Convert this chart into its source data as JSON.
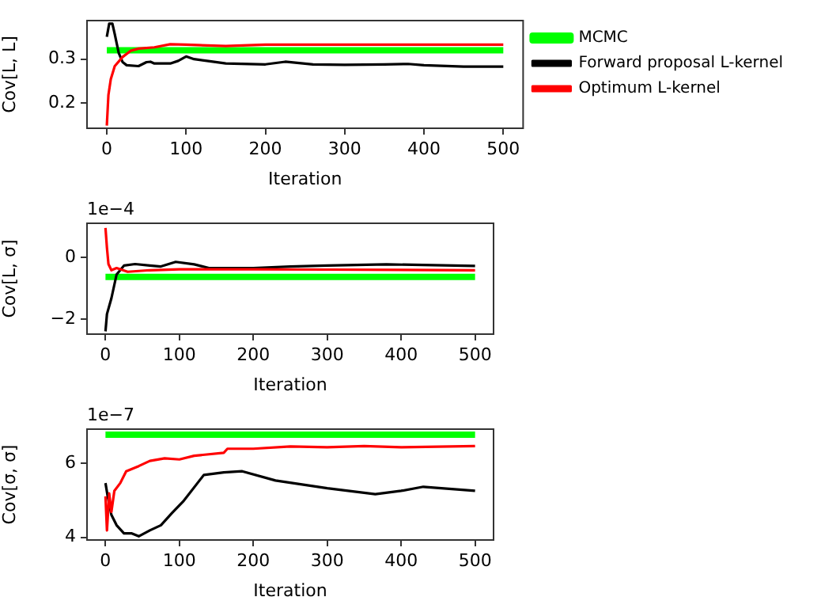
{
  "chart_data": [
    {
      "type": "line",
      "xlabel": "Iteration",
      "ylabel": "Cov[L, L]",
      "xlim": [
        -25,
        525
      ],
      "xticks": [
        0,
        100,
        200,
        300,
        400,
        500
      ],
      "ylim": [
        0.142,
        0.388
      ],
      "yticks": [
        0.2,
        0.3
      ],
      "grid": false,
      "legend": "top right",
      "series": [
        {
          "name": "MCMC",
          "color": "#00ff00",
          "x": [
            0,
            500
          ],
          "values": [
            0.32,
            0.32
          ]
        },
        {
          "name": "Forward proposal L-kernel",
          "color": "#000000",
          "x": [
            0,
            3,
            7,
            10,
            15,
            20,
            25,
            40,
            50,
            55,
            60,
            80,
            90,
            100,
            110,
            130,
            150,
            200,
            225,
            260,
            300,
            350,
            380,
            400,
            450,
            500
          ],
          "values": [
            0.351,
            0.381,
            0.381,
            0.357,
            0.314,
            0.293,
            0.286,
            0.284,
            0.293,
            0.294,
            0.29,
            0.29,
            0.296,
            0.306,
            0.3,
            0.295,
            0.29,
            0.288,
            0.294,
            0.288,
            0.287,
            0.288,
            0.289,
            0.286,
            0.283,
            0.283
          ]
        },
        {
          "name": "Optimum L-kernel",
          "color": "#ff0000",
          "x": [
            0,
            2,
            5,
            10,
            20,
            30,
            40,
            60,
            80,
            100,
            150,
            200,
            300,
            400,
            500
          ],
          "values": [
            0.148,
            0.218,
            0.254,
            0.284,
            0.305,
            0.319,
            0.324,
            0.327,
            0.334,
            0.333,
            0.33,
            0.333,
            0.333,
            0.333,
            0.333
          ]
        }
      ]
    },
    {
      "type": "line",
      "xlabel": "Iteration",
      "ylabel": "Cov[L, σ]",
      "xlim": [
        -25,
        525
      ],
      "xticks": [
        0,
        100,
        200,
        300,
        400,
        500
      ],
      "ylim": [
        -2.48,
        1.11
      ],
      "yticks": [
        -2,
        0
      ],
      "grid": false,
      "annotations": [
        "1e−4"
      ],
      "series": [
        {
          "color": "#00ff00",
          "x": [
            0,
            500
          ],
          "values": [
            -0.63,
            -0.63
          ]
        },
        {
          "color": "#000000",
          "x": [
            0,
            2,
            8,
            15,
            25,
            40,
            60,
            75,
            95,
            120,
            140,
            200,
            250,
            300,
            380,
            500
          ],
          "values": [
            -2.39,
            -1.83,
            -1.32,
            -0.55,
            -0.26,
            -0.21,
            -0.26,
            -0.29,
            -0.14,
            -0.22,
            -0.34,
            -0.34,
            -0.29,
            -0.26,
            -0.22,
            -0.27
          ]
        },
        {
          "color": "#ff0000",
          "x": [
            0,
            2,
            4,
            8,
            15,
            30,
            60,
            100,
            200,
            300,
            500
          ],
          "values": [
            0.96,
            0.31,
            -0.21,
            -0.41,
            -0.34,
            -0.46,
            -0.41,
            -0.38,
            -0.38,
            -0.39,
            -0.41
          ]
        }
      ]
    },
    {
      "type": "line",
      "xlabel": "Iteration",
      "ylabel": "Cov[σ, σ]",
      "xlim": [
        -25,
        525
      ],
      "xticks": [
        0,
        100,
        200,
        300,
        400,
        500
      ],
      "ylim": [
        3.93,
        6.93
      ],
      "yticks": [
        4,
        6
      ],
      "grid": false,
      "annotations": [
        "1e−7"
      ],
      "series": [
        {
          "color": "#00ff00",
          "x": [
            0,
            500
          ],
          "values": [
            6.78,
            6.78
          ]
        },
        {
          "color": "#000000",
          "x": [
            0,
            3,
            8,
            15,
            25,
            35,
            45,
            60,
            75,
            90,
            105,
            133,
            160,
            185,
            230,
            300,
            365,
            400,
            430,
            500
          ],
          "values": [
            5.47,
            5.11,
            4.61,
            4.33,
            4.11,
            4.11,
            4.03,
            4.19,
            4.33,
            4.66,
            4.97,
            5.69,
            5.76,
            5.79,
            5.54,
            5.33,
            5.17,
            5.26,
            5.37,
            5.26
          ]
        },
        {
          "color": "#ff0000",
          "x": [
            0,
            2,
            5,
            8,
            12,
            20,
            28,
            45,
            60,
            80,
            100,
            120,
            160,
            165,
            200,
            250,
            300,
            350,
            400,
            500
          ],
          "values": [
            5.11,
            4.19,
            5.19,
            4.69,
            5.26,
            5.47,
            5.79,
            5.93,
            6.07,
            6.14,
            6.11,
            6.21,
            6.29,
            6.4,
            6.4,
            6.46,
            6.44,
            6.47,
            6.44,
            6.47
          ]
        }
      ]
    }
  ]
}
